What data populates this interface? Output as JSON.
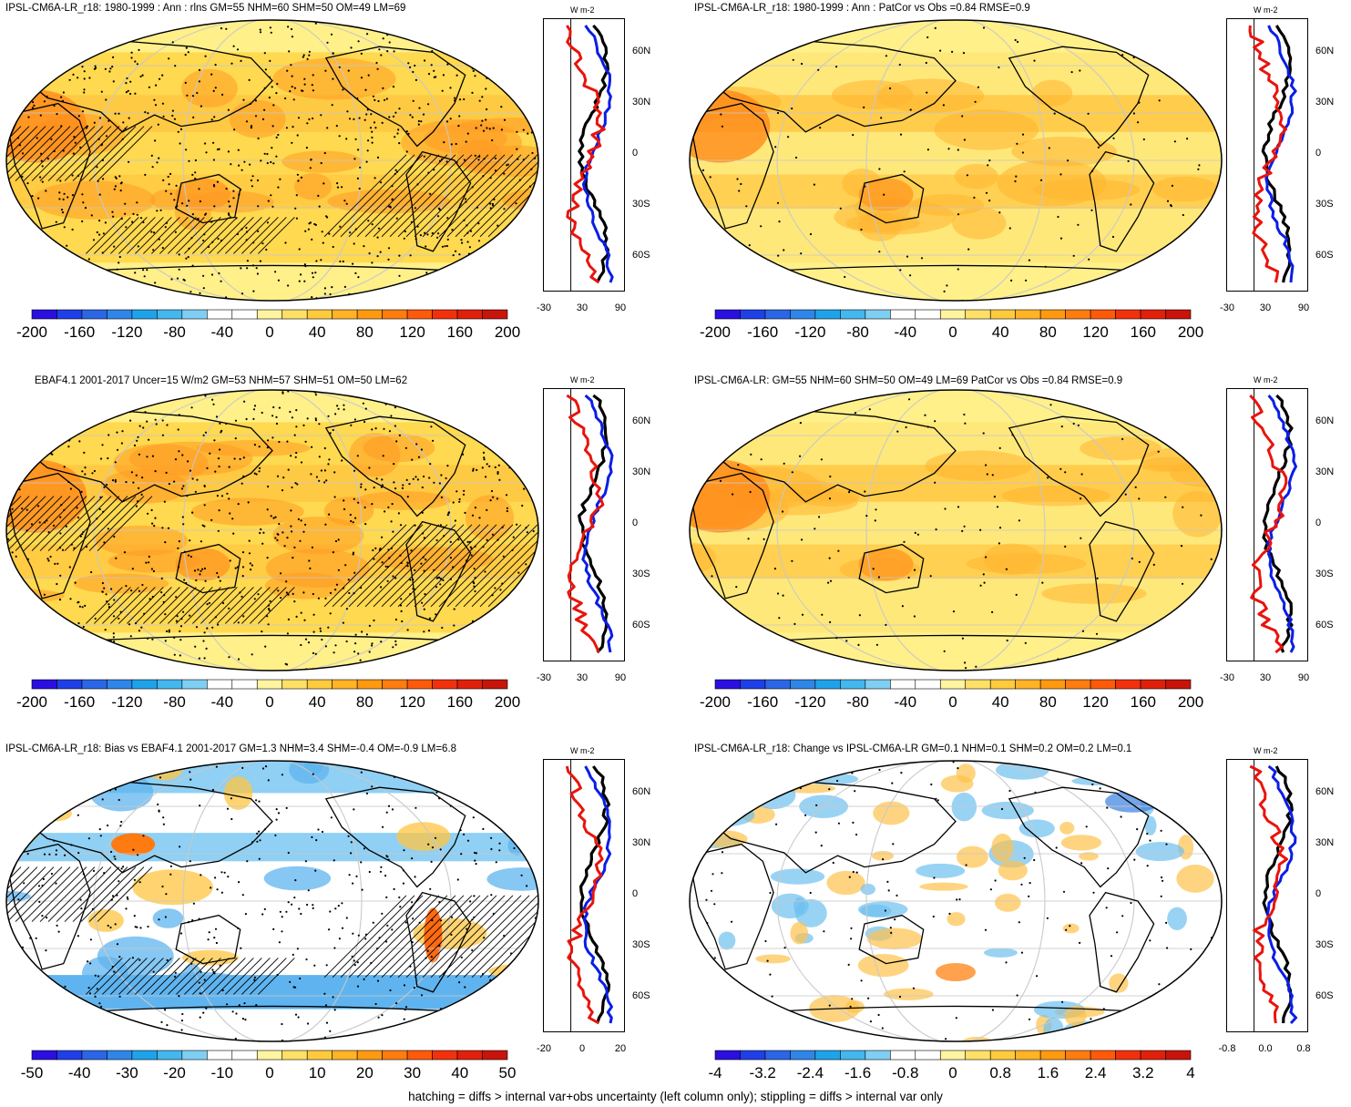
{
  "footer": "hatching = diffs > internal var+obs uncertainty (left column only); stippling = diffs > internal var only",
  "profile_unit": "W m-2",
  "panels": [
    {
      "title": "IPSL-CM6A-LR_r18: 1980-1999 : Ann : rlns GM=55 NHM=60 SHM=50 OM=49 LM=69",
      "map_style": "warm",
      "hatching": true,
      "colorbar_labels": [
        "-200",
        "-160",
        "-120",
        "-80",
        "-40",
        "0",
        "40",
        "80",
        "120",
        "160",
        "200"
      ],
      "profile_xticks": [
        "-30",
        "30",
        "90"
      ],
      "profile_lat_labels": [
        "60N",
        "30N",
        "0",
        "30S",
        "60S"
      ]
    },
    {
      "title": "IPSL-CM6A-LR_r18: 1980-1999 : Ann : PatCor vs Obs =0.84 RMSE=0.9",
      "map_style": "warm-light",
      "hatching": false,
      "colorbar_labels": [
        "-200",
        "-160",
        "-120",
        "-80",
        "-40",
        "0",
        "40",
        "80",
        "120",
        "160",
        "200"
      ],
      "profile_xticks": [
        "-30",
        "30",
        "90"
      ],
      "profile_lat_labels": [
        "60N",
        "30N",
        "0",
        "30S",
        "60S"
      ]
    },
    {
      "title": "EBAF4.1 2001-2017 Uncer=15 W/m2 GM=53 NHM=57 SHM=51 OM=50 LM=62",
      "map_style": "warm",
      "hatching": true,
      "colorbar_labels": [
        "-200",
        "-160",
        "-120",
        "-80",
        "-40",
        "0",
        "40",
        "80",
        "120",
        "160",
        "200"
      ],
      "profile_xticks": [
        "-30",
        "30",
        "90"
      ],
      "profile_lat_labels": [
        "60N",
        "30N",
        "0",
        "30S",
        "60S"
      ]
    },
    {
      "title": "IPSL-CM6A-LR: GM=55 NHM=60 SHM=50 OM=49 LM=69 PatCor vs Obs =0.84 RMSE=0.9",
      "map_style": "warm-light",
      "hatching": false,
      "colorbar_labels": [
        "-200",
        "-160",
        "-120",
        "-80",
        "-40",
        "0",
        "40",
        "80",
        "120",
        "160",
        "200"
      ],
      "profile_xticks": [
        "-30",
        "30",
        "90"
      ],
      "profile_lat_labels": [
        "60N",
        "30N",
        "0",
        "30S",
        "60S"
      ]
    },
    {
      "title": "IPSL-CM6A-LR_r18: Bias vs EBAF4.1 2001-2017 GM=1.3 NHM=3.4 SHM=-0.4 OM=-0.9 LM=6.8",
      "map_style": "bias",
      "hatching": true,
      "colorbar_labels": [
        "-50",
        "-40",
        "-30",
        "-20",
        "-10",
        "0",
        "10",
        "20",
        "30",
        "40",
        "50"
      ],
      "profile_xticks": [
        "-20",
        "0",
        "20"
      ],
      "profile_lat_labels": [
        "60N",
        "30N",
        "0",
        "30S",
        "60S"
      ]
    },
    {
      "title": "IPSL-CM6A-LR_r18: Change vs IPSL-CM6A-LR GM=0.1 NHM=0.1 SHM=0.2 OM=0.2 LM=0.1",
      "map_style": "change",
      "hatching": false,
      "colorbar_labels": [
        "-4",
        "-3.2",
        "-2.4",
        "-1.6",
        "-0.8",
        "0",
        "0.8",
        "1.6",
        "2.4",
        "3.2",
        "4"
      ],
      "profile_xticks": [
        "-0.8",
        "0.0",
        "0.8"
      ],
      "profile_lat_labels": [
        "60N",
        "30N",
        "0",
        "30S",
        "60S"
      ]
    }
  ],
  "colors": {
    "colorbar": [
      "#2a0fe0",
      "#1f3fe8",
      "#2a66e6",
      "#2f86e8",
      "#1ea3ea",
      "#43b7ee",
      "#7fcff4",
      "#ffffff",
      "#ffffff",
      "#fff4a0",
      "#ffe066",
      "#ffcb3d",
      "#ffb325",
      "#ff9a10",
      "#ff7c10",
      "#ff5a0a",
      "#f2310c",
      "#e0200a",
      "#c8140a"
    ],
    "warm_base": "#ffd94f",
    "warm_light_base": "#ffe87a",
    "warm_hot": "#ff9a22",
    "bias_base": "#ffffff",
    "bias_cold": "#5fb4ef",
    "bias_warm": "#ffc640",
    "profile_model": "#000000",
    "profile_obs": "#0a1ee6",
    "profile_diff": "#e8140c"
  }
}
